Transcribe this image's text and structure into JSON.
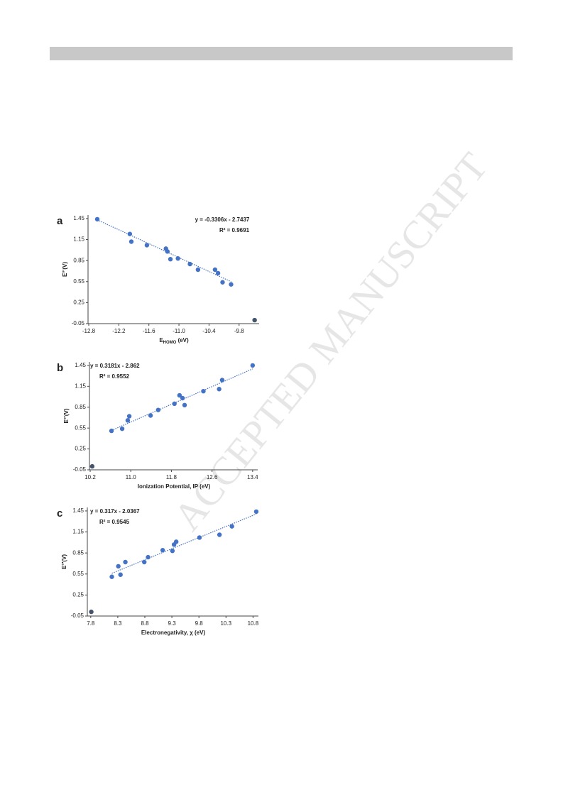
{
  "watermark": "ACCEPTED MANUSCRIPT",
  "chart_data": [
    {
      "type": "scatter",
      "panel": "a",
      "equation": "y = -0.3306x - 2.7437",
      "r2": "R² = 0.9691",
      "trendline": {
        "slope": -0.3306,
        "intercept": -2.7437
      },
      "xlabel": "E",
      "xlabel_sub": "HOMO",
      "xlabel_unit": "(eV)",
      "ylabel": "E°'(V)",
      "xlim": [
        -12.8,
        -9.4
      ],
      "ylim": [
        -0.05,
        1.5
      ],
      "xticks": [
        -12.8,
        -12.2,
        -11.6,
        {
          "value": -11,
          "label": "-11.0"
        },
        -10.4,
        -9.8
      ],
      "yticks": [
        -0.05,
        0.25,
        0.55,
        0.85,
        1.15,
        1.45
      ],
      "series": [
        {
          "color": "#4472c4",
          "x": [
            -12.63,
            -11.98,
            -11.95,
            -11.64,
            -11.26,
            -11.23,
            -11.17,
            -11.02,
            -10.78,
            -10.62,
            -10.28,
            -10.22,
            -10.13,
            -9.96
          ],
          "values": [
            1.44,
            1.23,
            1.12,
            1.07,
            1.02,
            0.98,
            0.87,
            0.88,
            0.8,
            0.72,
            0.72,
            0.67,
            0.54,
            0.51
          ]
        },
        {
          "color": "#44546a",
          "x": [
            -9.49
          ],
          "values": [
            0.0
          ]
        }
      ]
    },
    {
      "type": "scatter",
      "panel": "b",
      "equation": "y = 0.3181x - 2.862",
      "r2": "R² = 0.9552",
      "trendline": {
        "slope": 0.3181,
        "intercept": -2.862
      },
      "xlabel": "Ionization Potential, IP (eV)",
      "ylabel": "E°'(V)",
      "xlim": [
        10.2,
        13.5
      ],
      "ylim": [
        -0.05,
        1.5
      ],
      "xticks": [
        10.2,
        {
          "value": 11,
          "label": "11.0"
        },
        11.8,
        12.6,
        13.4
      ],
      "yticks": [
        -0.05,
        0.25,
        0.55,
        0.85,
        1.15,
        1.45
      ],
      "series": [
        {
          "color": "#4472c4",
          "x": [
            10.62,
            10.83,
            10.94,
            10.97,
            11.39,
            11.54,
            11.86,
            11.96,
            12.02,
            12.06,
            12.43,
            12.74,
            12.8,
            13.4
          ],
          "values": [
            0.51,
            0.54,
            0.66,
            0.72,
            0.73,
            0.81,
            0.9,
            1.02,
            0.98,
            0.88,
            1.08,
            1.11,
            1.24,
            1.45
          ]
        },
        {
          "color": "#44546a",
          "x": [
            10.24
          ],
          "values": [
            0.0
          ]
        }
      ]
    },
    {
      "type": "scatter",
      "panel": "c",
      "equation": "y = 0.317x - 2.0367",
      "r2": "R² = 0.9545",
      "trendline": {
        "slope": 0.317,
        "intercept": -2.0367
      },
      "xlabel": "Electronegativity, χ (eV)",
      "ylabel": "E°'(V)",
      "xlim": [
        7.75,
        10.9
      ],
      "ylim": [
        -0.05,
        1.5
      ],
      "xticks": [
        7.8,
        8.3,
        8.8,
        9.3,
        9.8,
        10.3,
        10.8
      ],
      "yticks": [
        -0.05,
        0.25,
        0.55,
        0.85,
        1.15,
        1.45
      ],
      "series": [
        {
          "color": "#4472c4",
          "x": [
            8.19,
            8.31,
            8.35,
            8.44,
            8.79,
            8.86,
            9.13,
            9.31,
            9.34,
            9.38,
            9.81,
            10.18,
            10.41,
            10.86
          ],
          "values": [
            0.51,
            0.66,
            0.54,
            0.72,
            0.72,
            0.79,
            0.89,
            0.88,
            0.97,
            1.01,
            1.07,
            1.11,
            1.23,
            1.44
          ]
        },
        {
          "color": "#44546a",
          "x": [
            7.81
          ],
          "values": [
            0.01
          ]
        }
      ]
    }
  ]
}
